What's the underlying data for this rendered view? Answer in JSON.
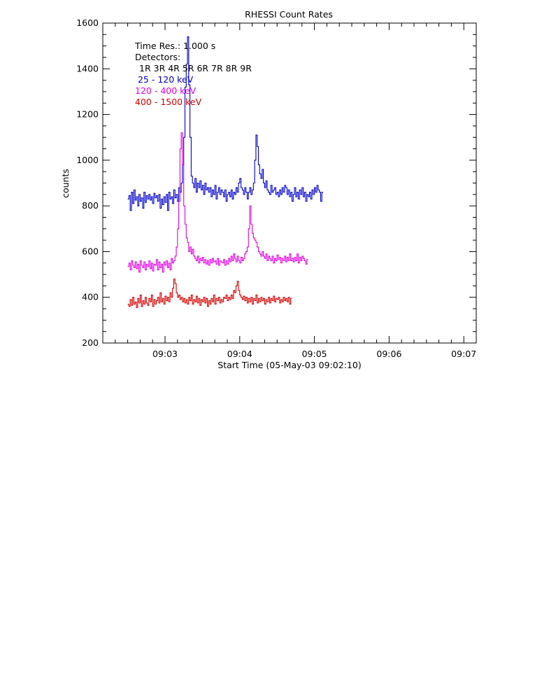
{
  "chart_data": {
    "type": "line",
    "title": "RHESSI Count Rates",
    "xlabel": "Start Time (05-May-03 09:02:10)",
    "ylabel": "counts",
    "x_unit": "seconds since 09:02:10 UT",
    "xlim": [
      0,
      300
    ],
    "ylim": [
      200,
      1600
    ],
    "x_ticks": [
      {
        "value": 50,
        "label": "09:03"
      },
      {
        "value": 110,
        "label": "09:04"
      },
      {
        "value": 170,
        "label": "09:05"
      },
      {
        "value": 230,
        "label": "09:06"
      },
      {
        "value": 290,
        "label": "09:07"
      }
    ],
    "y_ticks": [
      200,
      400,
      600,
      800,
      1000,
      1200,
      1400,
      1600
    ],
    "grid": false,
    "legend_position": "top-left",
    "legend": {
      "time_res": "Time Res.: 1.000 s",
      "detectors_label": "Detectors:",
      "detectors": "1R 3R 4R 5R 6R 7R 8R 9R"
    },
    "series": [
      {
        "name": " 25 - 120 keV",
        "color": "#0000c8",
        "start": 20,
        "step": 1,
        "values": [
          830,
          845,
          780,
          860,
          810,
          870,
          825,
          840,
          800,
          850,
          820,
          835,
          790,
          860,
          815,
          845,
          830,
          850,
          825,
          840,
          810,
          855,
          835,
          845,
          820,
          850,
          790,
          830,
          805,
          840,
          815,
          850,
          780,
          860,
          830,
          840,
          810,
          870,
          835,
          850,
          820,
          880,
          860,
          900,
          980,
          1100,
          1320,
          1420,
          1540,
          1330,
          1100,
          930,
          900,
          880,
          920,
          860,
          900,
          880,
          910,
          870,
          890,
          850,
          900,
          870,
          880,
          860,
          880,
          840,
          870,
          850,
          890,
          830,
          860,
          880,
          850,
          870,
          860,
          840,
          870,
          820,
          850,
          860,
          840,
          870,
          830,
          860,
          850,
          880,
          860,
          900,
          920,
          880,
          870,
          850,
          880,
          860,
          830,
          860,
          880,
          850,
          870,
          900,
          1000,
          1110,
          1060,
          980,
          940,
          920,
          960,
          900,
          880,
          910,
          870,
          860,
          850,
          890,
          860,
          870,
          880,
          850,
          860,
          840,
          870,
          850,
          880,
          860,
          890,
          880,
          850,
          870,
          840,
          860,
          820,
          850,
          880,
          840,
          860,
          830,
          870,
          850,
          880,
          840,
          860,
          820,
          850,
          840,
          860,
          830,
          870,
          850,
          880,
          860,
          890,
          870,
          860,
          820,
          860
        ]
      },
      {
        "name": "120 - 400 keV",
        "color": "#e000e0",
        "start": 20,
        "step": 1,
        "values": [
          535,
          550,
          520,
          560,
          540,
          530,
          555,
          525,
          545,
          510,
          560,
          540,
          530,
          555,
          520,
          545,
          535,
          560,
          525,
          550,
          515,
          545,
          540,
          565,
          520,
          555,
          530,
          545,
          510,
          555,
          540,
          560,
          530,
          550,
          520,
          570,
          550,
          560,
          580,
          620,
          700,
          820,
          1050,
          1120,
          980,
          800,
          720,
          660,
          640,
          600,
          620,
          590,
          610,
          580,
          570,
          560,
          580,
          550,
          570,
          560,
          575,
          550,
          565,
          545,
          560,
          540,
          565,
          550,
          570,
          555,
          560,
          545,
          570,
          540,
          560,
          555,
          550,
          565,
          540,
          560,
          545,
          570,
          555,
          580,
          560,
          590,
          570,
          555,
          580,
          560,
          550,
          575,
          560,
          570,
          590,
          600,
          620,
          700,
          800,
          720,
          680,
          660,
          650,
          640,
          620,
          600,
          590,
          580,
          600,
          580,
          570,
          590,
          560,
          580,
          570,
          560,
          580,
          550,
          570,
          560,
          585,
          565,
          575,
          550,
          570,
          560,
          580,
          555,
          575,
          560,
          590,
          560,
          570,
          555,
          575,
          560,
          590,
          550,
          575,
          560,
          580,
          570,
          560,
          545,
          565
        ]
      },
      {
        "name": "400 - 1500 keV",
        "color": "#d00000",
        "start": 20,
        "step": 1,
        "values": [
          370,
          360,
          390,
          365,
          400,
          370,
          380,
          355,
          395,
          375,
          410,
          360,
          385,
          370,
          400,
          375,
          365,
          395,
          380,
          410,
          360,
          390,
          370,
          385,
          400,
          375,
          420,
          380,
          395,
          370,
          405,
          385,
          400,
          380,
          420,
          400,
          440,
          480,
          460,
          420,
          400,
          410,
          390,
          400,
          380,
          395,
          375,
          390,
          370,
          400,
          385,
          410,
          370,
          390,
          380,
          405,
          375,
          395,
          365,
          390,
          380,
          400,
          375,
          395,
          360,
          385,
          370,
          395,
          380,
          410,
          370,
          395,
          385,
          400,
          375,
          390,
          380,
          400,
          395,
          410,
          385,
          400,
          390,
          410,
          395,
          430,
          420,
          450,
          470,
          430,
          410,
          400,
          390,
          405,
          385,
          400,
          375,
          395,
          380,
          400,
          370,
          395,
          385,
          410,
          375,
          395,
          380,
          400,
          385,
          395,
          370,
          390,
          380,
          400,
          375,
          395,
          385,
          405,
          380,
          395,
          390,
          400,
          375,
          390,
          380,
          400,
          385,
          395,
          380,
          400,
          370,
          395
        ]
      }
    ]
  }
}
